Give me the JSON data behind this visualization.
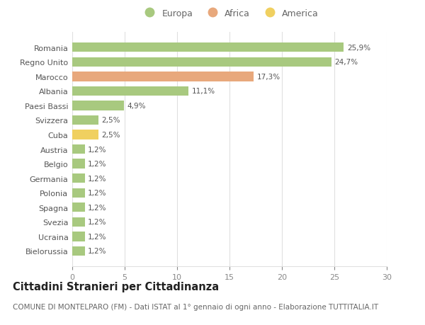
{
  "countries": [
    "Bielorussia",
    "Ucraina",
    "Svezia",
    "Spagna",
    "Polonia",
    "Germania",
    "Belgio",
    "Austria",
    "Cuba",
    "Svizzera",
    "Paesi Bassi",
    "Albania",
    "Marocco",
    "Regno Unito",
    "Romania"
  ],
  "values": [
    1.2,
    1.2,
    1.2,
    1.2,
    1.2,
    1.2,
    1.2,
    1.2,
    2.5,
    2.5,
    4.9,
    11.1,
    17.3,
    24.7,
    25.9
  ],
  "labels": [
    "1,2%",
    "1,2%",
    "1,2%",
    "1,2%",
    "1,2%",
    "1,2%",
    "1,2%",
    "1,2%",
    "2,5%",
    "2,5%",
    "4,9%",
    "11,1%",
    "17,3%",
    "24,7%",
    "25,9%"
  ],
  "colors": [
    "#a8c97f",
    "#a8c97f",
    "#a8c97f",
    "#a8c97f",
    "#a8c97f",
    "#a8c97f",
    "#a8c97f",
    "#a8c97f",
    "#f0d060",
    "#a8c97f",
    "#a8c97f",
    "#a8c97f",
    "#e8a87c",
    "#a8c97f",
    "#a8c97f"
  ],
  "legend_labels": [
    "Europa",
    "Africa",
    "America"
  ],
  "legend_colors": [
    "#a8c97f",
    "#e8a87c",
    "#f0d060"
  ],
  "title": "Cittadini Stranieri per Cittadinanza",
  "subtitle": "COMUNE DI MONTELPARO (FM) - Dati ISTAT al 1° gennaio di ogni anno - Elaborazione TUTTITALIA.IT",
  "xlim": [
    0,
    30
  ],
  "xticks": [
    0,
    5,
    10,
    15,
    20,
    25,
    30
  ],
  "bg_color": "#ffffff",
  "grid_color": "#e0e0e0",
  "bar_height": 0.65,
  "title_fontsize": 10.5,
  "subtitle_fontsize": 7.5,
  "label_fontsize": 7.5,
  "tick_fontsize": 8,
  "legend_fontsize": 9
}
